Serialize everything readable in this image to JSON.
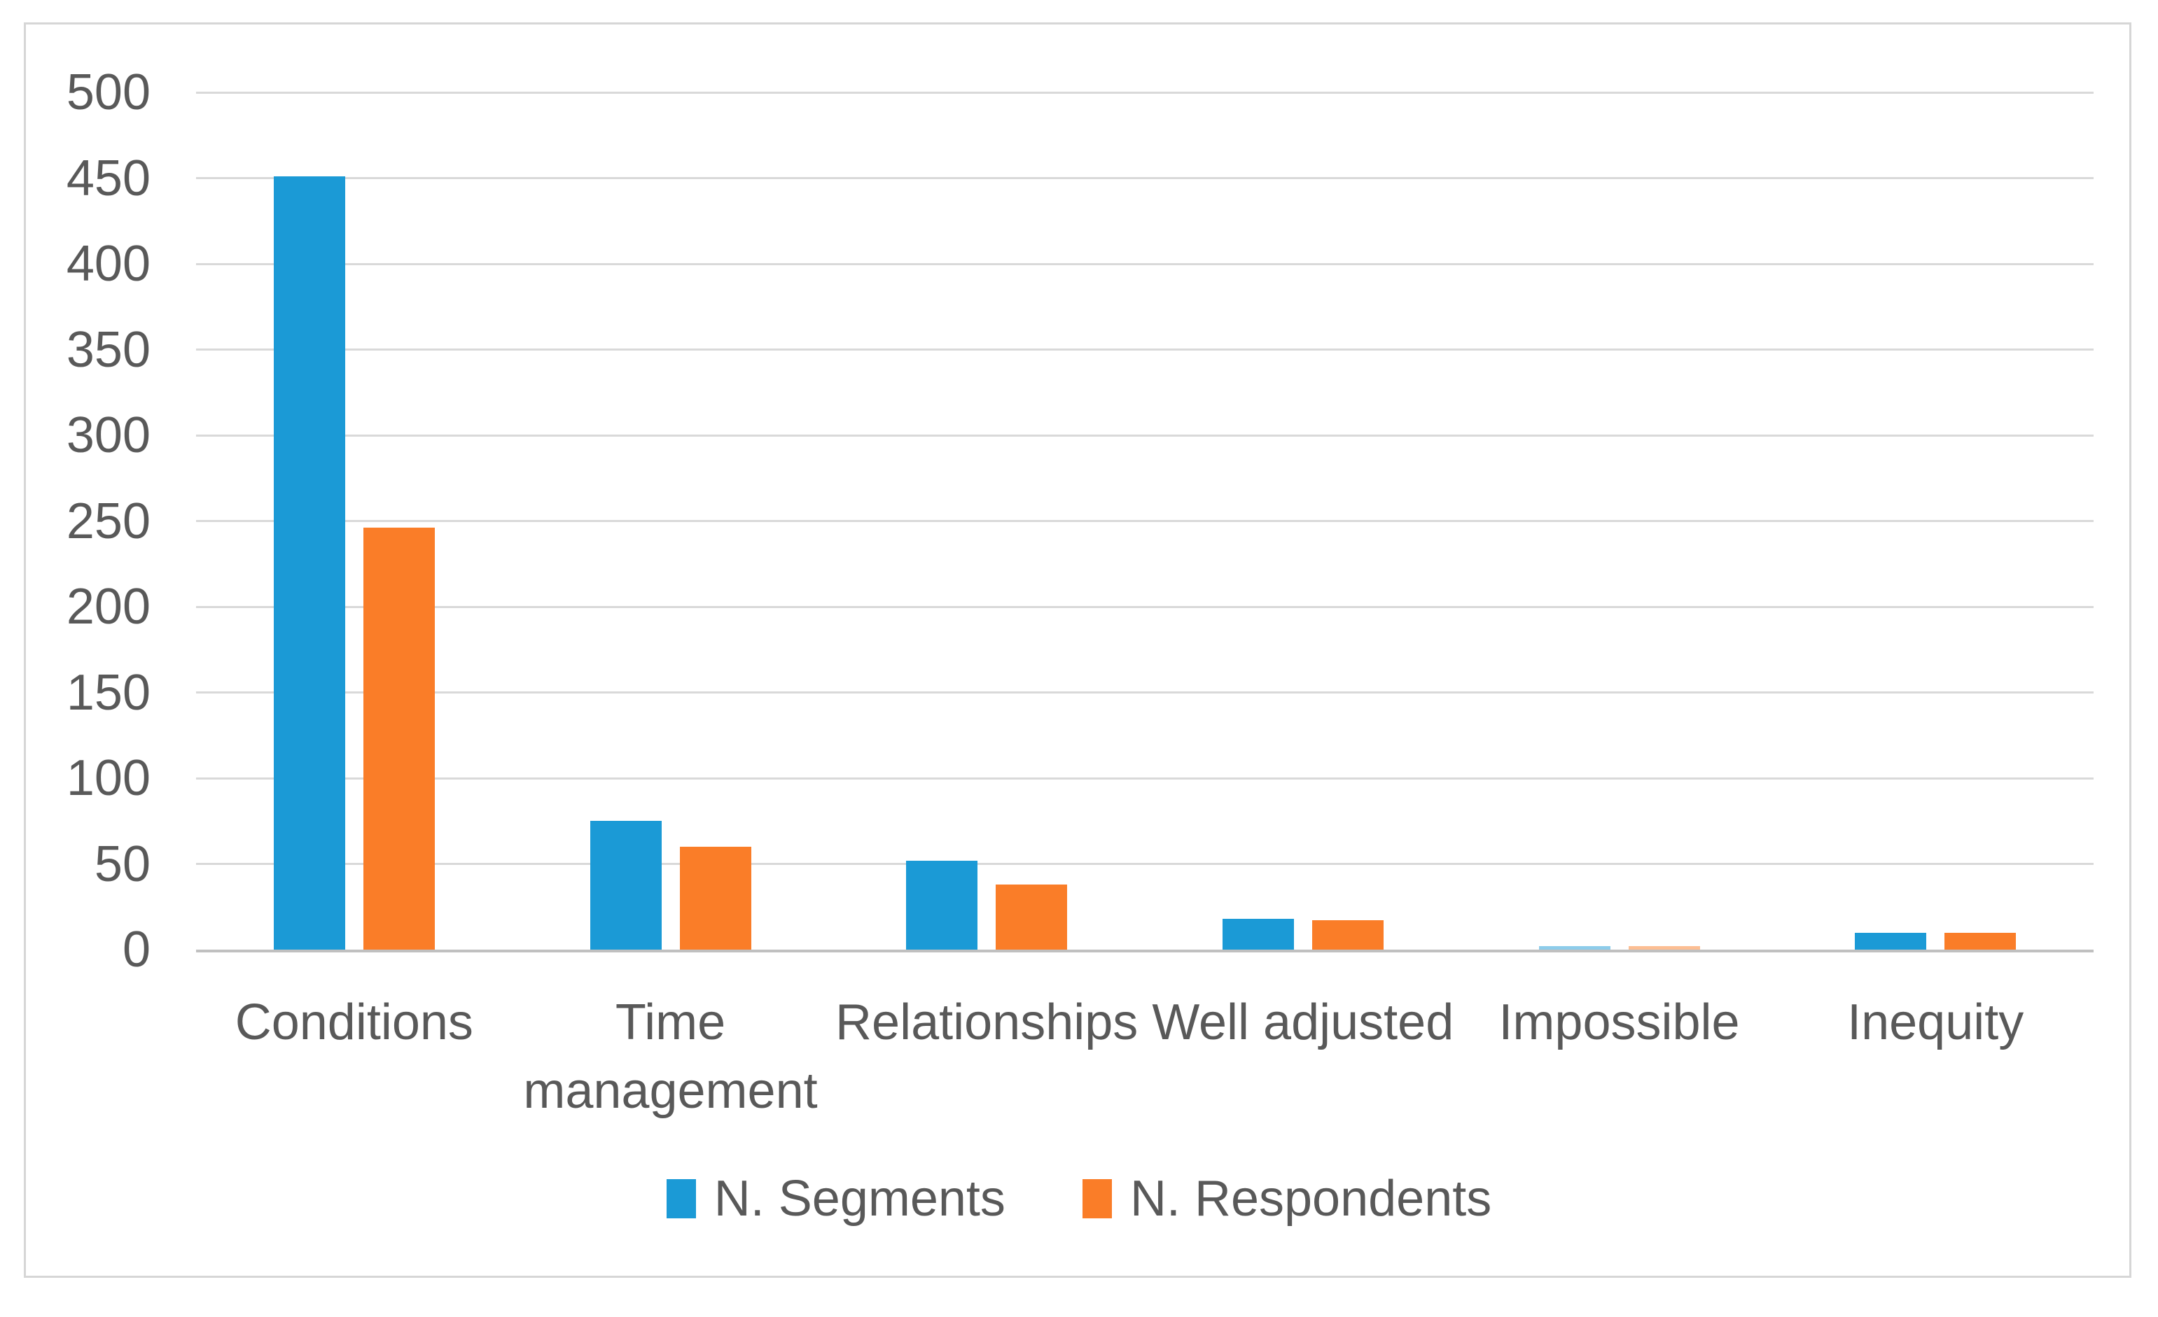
{
  "figure": {
    "background_color": "#FFFFFF",
    "border_color": "#D6D6D6"
  },
  "chart_data": {
    "type": "bar",
    "title": "",
    "xlabel": "",
    "ylabel": "",
    "categories": [
      "Conditions",
      "Time management",
      "Relationships",
      "Well adjusted",
      "Impossible",
      "Inequity"
    ],
    "series": [
      {
        "name": "N. Segments",
        "color": "#1B9AD6",
        "values": [
          451,
          75,
          52,
          18,
          2,
          10
        ]
      },
      {
        "name": "N. Respondents",
        "color": "#FA7D28",
        "values": [
          246,
          60,
          38,
          17,
          2,
          10
        ]
      }
    ],
    "ylim": [
      0,
      500
    ],
    "ytick_step": 50,
    "yticks": [
      "0",
      "50",
      "100",
      "150",
      "200",
      "250",
      "300",
      "350",
      "400",
      "450",
      "500"
    ],
    "grid": "horizontal",
    "gridline_color": "#D9D9D9",
    "axis_line_color": "#C0C0C0",
    "tick_label_color": "#595959",
    "legend_position": "bottom"
  }
}
